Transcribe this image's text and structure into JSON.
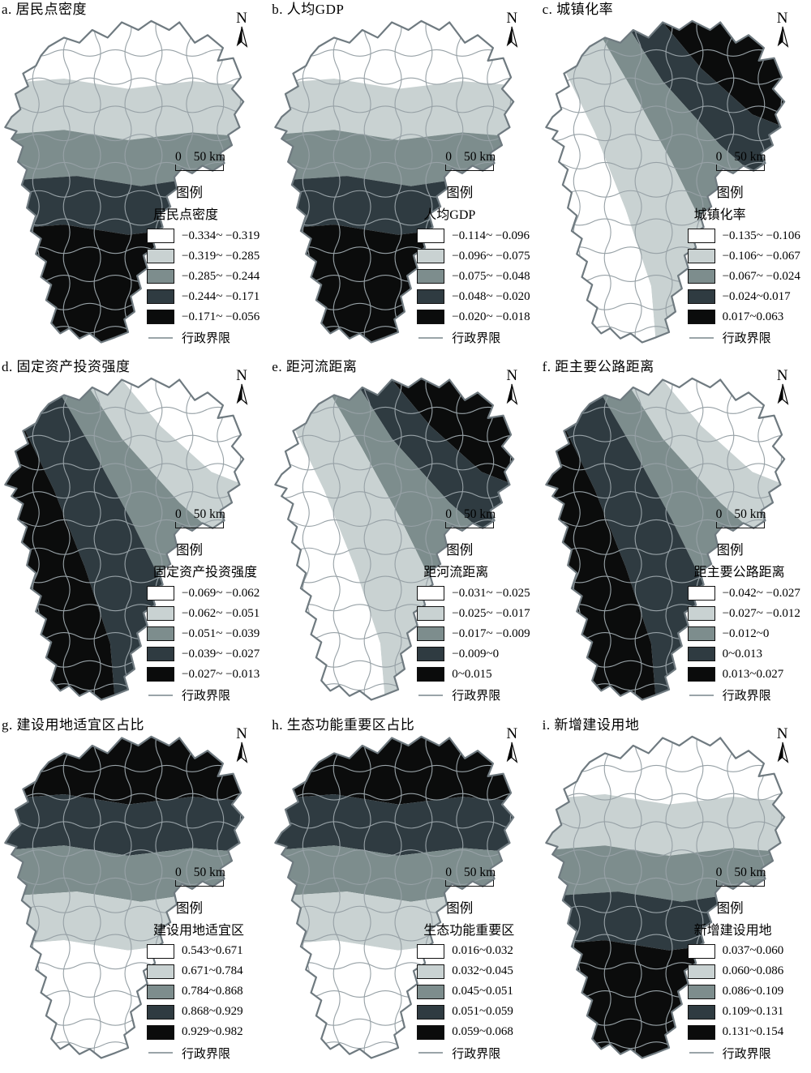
{
  "palette": {
    "classes": [
      "#ffffff",
      "#c9d2d2",
      "#7d8d8d",
      "#2f3b41",
      "#0b0c0c"
    ],
    "boundary_line": "#9aa4a8",
    "outline": "#6f7a80"
  },
  "legend_header": "图例",
  "boundary_label": "行政界限",
  "north_label": "N",
  "scale": {
    "zero": "0",
    "max": "50 km"
  },
  "panels": [
    {
      "title": "a. 居民点密度",
      "legend_title": "居民点密度",
      "pattern": "ns",
      "zones": [
        0,
        1,
        2,
        3,
        4
      ],
      "ranges": [
        "−0.334~ −0.319",
        "−0.319~ −0.285",
        "−0.285~ −0.244",
        "−0.244~ −0.171",
        "−0.171~ −0.056"
      ]
    },
    {
      "title": "b. 人均GDP",
      "legend_title": "人均GDP",
      "pattern": "ns",
      "zones": [
        0,
        1,
        2,
        3,
        4
      ],
      "ranges": [
        "−0.114~ −0.096",
        "−0.096~ −0.075",
        "−0.075~ −0.048",
        "−0.048~ −0.020",
        "−0.020~ −0.018"
      ]
    },
    {
      "title": "c. 城镇化率",
      "legend_title": "城镇化率",
      "pattern": "diag",
      "zones": [
        4,
        3,
        2,
        1,
        0
      ],
      "ranges": [
        "−0.135~ −0.106",
        "−0.106~ −0.067",
        "−0.067~ −0.024",
        "−0.024~0.017",
        "0.017~0.063"
      ]
    },
    {
      "title": "d. 固定资产投资强度",
      "legend_title": "固定资产投资强度",
      "pattern": "diag",
      "zones": [
        0,
        1,
        2,
        3,
        4
      ],
      "ranges": [
        "−0.069~ −0.062",
        "−0.062~ −0.051",
        "−0.051~ −0.039",
        "−0.039~ −0.027",
        "−0.027~ −0.013"
      ]
    },
    {
      "title": "e. 距河流距离",
      "legend_title": "距河流距离",
      "pattern": "diag",
      "zones": [
        4,
        3,
        2,
        1,
        0
      ],
      "ranges": [
        "−0.031~ −0.025",
        "−0.025~ −0.017",
        "−0.017~ −0.009",
        "−0.009~0",
        "0~0.015"
      ]
    },
    {
      "title": "f. 距主要公路距离",
      "legend_title": "距主要公路距离",
      "pattern": "diag",
      "zones": [
        0,
        1,
        2,
        3,
        4
      ],
      "ranges": [
        "−0.042~ −0.027",
        "−0.027~ −0.012",
        "−0.012~0",
        "0~0.013",
        "0.013~0.027"
      ]
    },
    {
      "title": "g. 建设用地适宜区占比",
      "legend_title": "建设用地适宜区",
      "pattern": "ns",
      "zones": [
        4,
        3,
        2,
        1,
        0
      ],
      "ranges": [
        "0.543~0.671",
        "0.671~0.784",
        "0.784~0.868",
        "0.868~0.929",
        "0.929~0.982"
      ]
    },
    {
      "title": "h. 生态功能重要区占比",
      "legend_title": "生态功能重要区",
      "pattern": "ns",
      "zones": [
        4,
        3,
        2,
        1,
        0
      ],
      "ranges": [
        "0.016~0.032",
        "0.032~0.045",
        "0.045~0.051",
        "0.051~0.059",
        "0.059~0.068"
      ]
    },
    {
      "title": "i. 新增建设用地",
      "legend_title": "新增建设用地",
      "pattern": "ns",
      "zones": [
        0,
        1,
        2,
        3,
        4
      ],
      "ranges": [
        "0.037~0.060",
        "0.060~0.086",
        "0.086~0.109",
        "0.109~0.131",
        "0.131~0.154"
      ]
    }
  ]
}
